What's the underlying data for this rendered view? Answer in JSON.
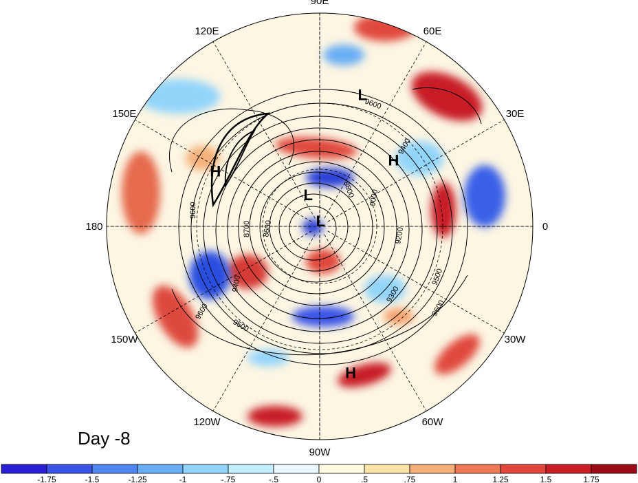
{
  "map": {
    "projection": "north polar stereographic",
    "day_label": "Day -8",
    "longitude_labels": [
      {
        "lon": 90,
        "text": "90E"
      },
      {
        "lon": 60,
        "text": "60E"
      },
      {
        "lon": 30,
        "text": "30E"
      },
      {
        "lon": 0,
        "text": "0"
      },
      {
        "lon": -30,
        "text": "30W"
      },
      {
        "lon": -60,
        "text": "60W"
      },
      {
        "lon": -90,
        "text": "90W"
      },
      {
        "lon": -120,
        "text": "120W"
      },
      {
        "lon": -150,
        "text": "150W"
      },
      {
        "lon": 180,
        "text": "180"
      },
      {
        "lon": 150,
        "text": "150E"
      },
      {
        "lon": 120,
        "text": "120E"
      }
    ],
    "pressure_centers": [
      {
        "text": "L",
        "lon": 72,
        "lat": 24
      },
      {
        "text": "H",
        "lon": 42,
        "lat": 40
      },
      {
        "text": "H",
        "lon": 152,
        "lat": 32
      },
      {
        "text": "L",
        "lon": 110,
        "lat": 72
      },
      {
        "text": "L",
        "lon": 80,
        "lat": 87
      },
      {
        "text": "H",
        "lon": -78,
        "lat": 20
      }
    ],
    "contour_labels": [
      "9600",
      "9400",
      "9200",
      "9000",
      "8800",
      "8700",
      "8600",
      "9300",
      "9500",
      "9600",
      "9400",
      "9500",
      "9600",
      "9600"
    ],
    "colorbar": {
      "ticks": [
        "-1.75",
        "-1.5",
        "-1.25",
        "-1",
        "-.75",
        "-.5",
        "0",
        ".5",
        ".75",
        "1",
        "1.25",
        "1.5",
        "1.75"
      ],
      "colors": [
        "#2b1fd6",
        "#3b54e8",
        "#4f86f0",
        "#6aaef5",
        "#93d4fa",
        "#c3eefc",
        "#e8f8fe",
        "#fefbe0",
        "#fbe2a8",
        "#f5b07a",
        "#ee7a58",
        "#e2453c",
        "#c81d25",
        "#9c0a17"
      ]
    }
  }
}
